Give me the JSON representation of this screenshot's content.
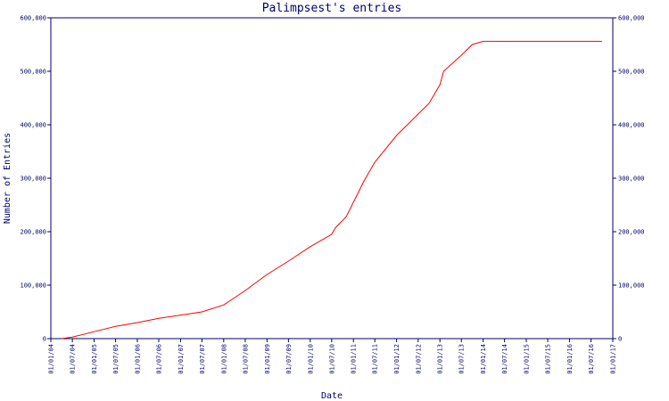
{
  "chart_data": {
    "type": "line",
    "title": "Palimpsest's entries",
    "xlabel": "Date",
    "ylabel": "Number of Entries",
    "ylim": [
      0,
      600000
    ],
    "xlim": [
      "2004-01-01",
      "2017-01-01"
    ],
    "grid": false,
    "y_ticks": [
      0,
      100000,
      200000,
      300000,
      400000,
      500000,
      600000
    ],
    "y_tick_labels": [
      "0",
      "100,000",
      "200,000",
      "300,000",
      "400,000",
      "500,000",
      "600,000"
    ],
    "x_ticks": [
      "2004-01-01",
      "2004-07-01",
      "2005-01-01",
      "2005-07-01",
      "2006-01-01",
      "2006-07-01",
      "2007-01-01",
      "2007-07-01",
      "2008-01-01",
      "2008-07-01",
      "2009-01-01",
      "2009-07-01",
      "2010-01-01",
      "2010-07-01",
      "2011-01-01",
      "2011-07-01",
      "2012-01-01",
      "2012-07-01",
      "2013-01-01",
      "2013-07-01",
      "2014-01-01",
      "2014-07-01",
      "2015-01-01",
      "2015-07-01",
      "2016-01-01",
      "2016-07-01",
      "2017-01-01"
    ],
    "x_tick_labels": [
      "01/01/04",
      "01/07/04",
      "01/01/05",
      "01/07/05",
      "01/01/06",
      "01/07/06",
      "01/01/07",
      "01/07/07",
      "01/01/08",
      "01/07/08",
      "01/01/09",
      "01/07/09",
      "01/01/10",
      "01/07/10",
      "01/01/11",
      "01/07/11",
      "01/01/12",
      "01/07/12",
      "01/01/13",
      "01/07/13",
      "01/01/14",
      "01/07/14",
      "01/01/15",
      "01/07/15",
      "01/01/16",
      "01/07/16",
      "01/01/17"
    ],
    "series": [
      {
        "color": "#ff0000",
        "points": [
          [
            "2004-04-01",
            0
          ],
          [
            "2004-07-01",
            3000
          ],
          [
            "2005-01-01",
            13000
          ],
          [
            "2005-07-01",
            23000
          ],
          [
            "2006-01-01",
            30000
          ],
          [
            "2006-07-01",
            38000
          ],
          [
            "2007-01-01",
            44000
          ],
          [
            "2007-07-01",
            50000
          ],
          [
            "2008-01-01",
            63000
          ],
          [
            "2008-07-01",
            90000
          ],
          [
            "2009-01-01",
            120000
          ],
          [
            "2009-07-01",
            145000
          ],
          [
            "2010-01-01",
            172000
          ],
          [
            "2010-07-01",
            195000
          ],
          [
            "2010-08-01",
            207000
          ],
          [
            "2010-11-01",
            228000
          ],
          [
            "2011-01-01",
            255000
          ],
          [
            "2011-04-01",
            295000
          ],
          [
            "2011-07-01",
            330000
          ],
          [
            "2012-01-01",
            380000
          ],
          [
            "2012-07-01",
            420000
          ],
          [
            "2012-10-01",
            440000
          ],
          [
            "2013-01-01",
            475000
          ],
          [
            "2013-02-01",
            500000
          ],
          [
            "2013-07-01",
            530000
          ],
          [
            "2013-10-01",
            550000
          ],
          [
            "2014-01-01",
            556000
          ],
          [
            "2016-10-01",
            556000
          ]
        ]
      }
    ]
  }
}
